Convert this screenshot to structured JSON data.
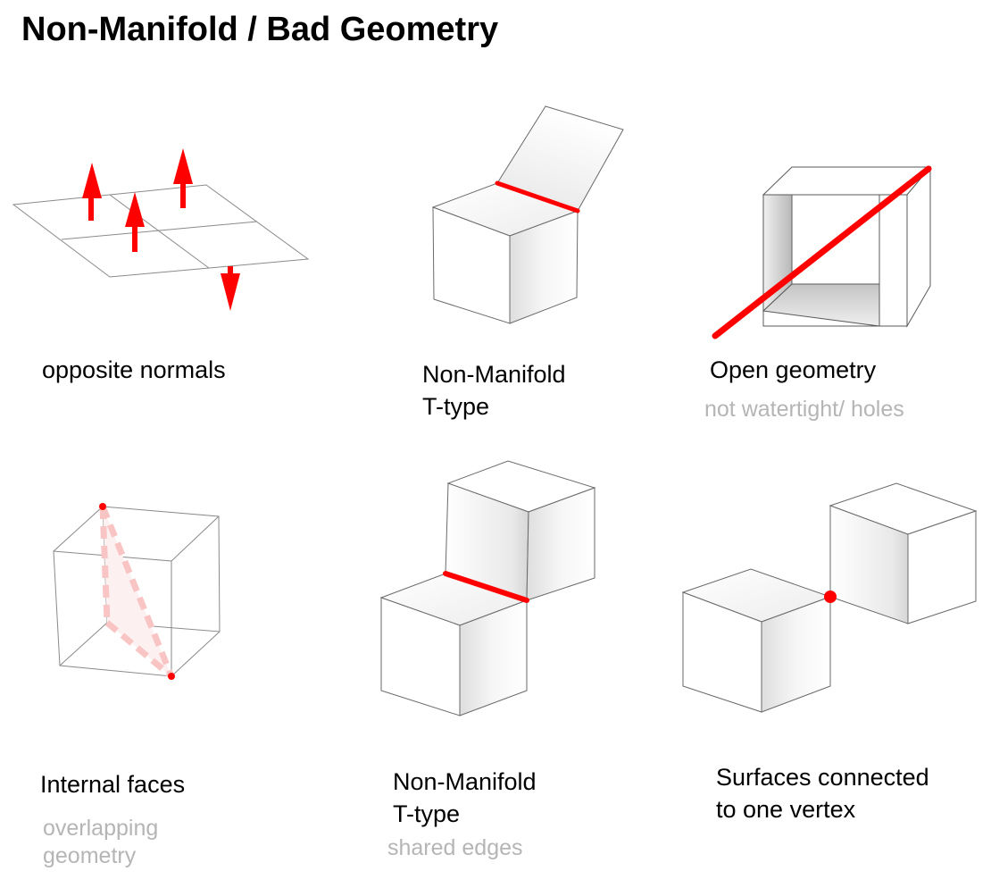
{
  "title": "Non-Manifold / Bad Geometry",
  "colors": {
    "highlight": "#ff0000",
    "highlight_faded": "#f9c4c4",
    "edge": "#707070",
    "face": "#ffffff",
    "subtitle": "#b5b5b5"
  },
  "panels": [
    {
      "id": "opposite-normals",
      "label_lines": [
        "opposite normals"
      ],
      "sublabel_lines": []
    },
    {
      "id": "non-manifold-t-type-1",
      "label_lines": [
        "Non-Manifold",
        "T-type"
      ],
      "sublabel_lines": []
    },
    {
      "id": "open-geometry",
      "label_lines": [
        "Open geometry"
      ],
      "sublabel_lines": [
        "not watertight/ holes"
      ]
    },
    {
      "id": "internal-faces",
      "label_lines": [
        "Internal faces"
      ],
      "sublabel_lines": [
        "overlapping",
        "geometry"
      ]
    },
    {
      "id": "non-manifold-t-type-2",
      "label_lines": [
        "Non-Manifold",
        "T-type"
      ],
      "sublabel_lines": [
        "shared edges"
      ]
    },
    {
      "id": "vertex-connected",
      "label_lines": [
        "Surfaces connected",
        "to one vertex"
      ],
      "sublabel_lines": []
    }
  ]
}
